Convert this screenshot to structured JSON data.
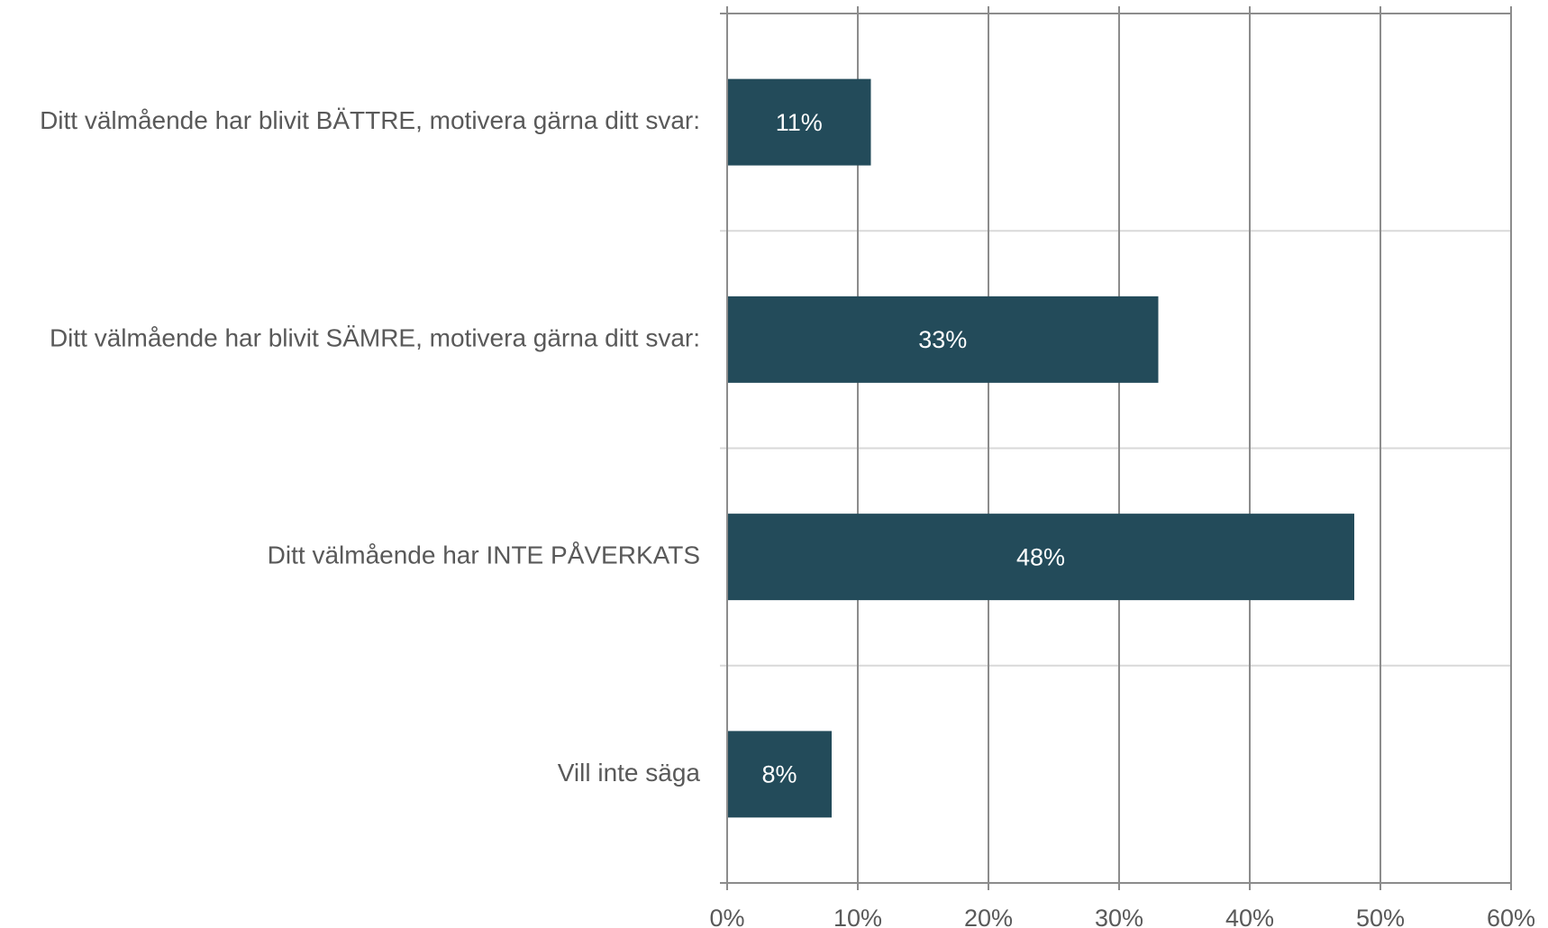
{
  "chart_data": {
    "type": "bar",
    "orientation": "horizontal",
    "categories": [
      "Ditt välmående har blivit BÄTTRE, motivera gärna ditt svar:",
      "Ditt välmående har blivit SÄMRE, motivera gärna ditt svar:",
      "Ditt välmående har INTE PÅVERKATS",
      "Vill inte säga"
    ],
    "values": [
      11,
      33,
      48,
      8
    ],
    "value_labels": [
      "11%",
      "33%",
      "48%",
      "8%"
    ],
    "color": "#234b5a",
    "xlim": [
      0,
      60
    ],
    "xticks": [
      {
        "value": 0,
        "label": "0%"
      },
      {
        "value": 10,
        "label": "10%"
      },
      {
        "value": 20,
        "label": "20%"
      },
      {
        "value": 30,
        "label": "30%"
      },
      {
        "value": 40,
        "label": "40%"
      },
      {
        "value": 50,
        "label": "50%"
      },
      {
        "value": 60,
        "label": "60%"
      }
    ],
    "grid": true
  }
}
